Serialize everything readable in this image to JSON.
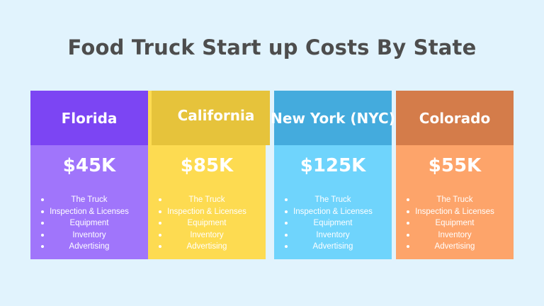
{
  "title": "Food Truck Start up Costs By State",
  "states": [
    {
      "name": "Florida",
      "price": "$45K",
      "header_color": "#7c45f3",
      "body_color": "#a075fb",
      "items": [
        "The Truck",
        "Inspection & Licenses",
        "Equipment",
        "Inventory",
        "Advertising"
      ]
    },
    {
      "name": "California",
      "price": "$85K",
      "header_color": "#e6c33b",
      "body_color": "#fddb51",
      "items": [
        "The Truck",
        "Inspection & Licenses",
        "Equipment",
        "Inventory",
        "Advertising"
      ]
    },
    {
      "name": "New York (NYC)",
      "price": "$125K",
      "header_color": "#44abdd",
      "body_color": "#6fd4fc",
      "items": [
        "The Truck",
        "Inspection & Licenses",
        "Equipment",
        "Inventory",
        "Advertising"
      ]
    },
    {
      "name": "Colorado",
      "price": "$55K",
      "header_color": "#d47c4a",
      "body_color": "#fda46a",
      "items": [
        "The Truck",
        "Inspection & Licenses",
        "Equipment",
        "Inventory",
        "Advertising"
      ]
    }
  ]
}
